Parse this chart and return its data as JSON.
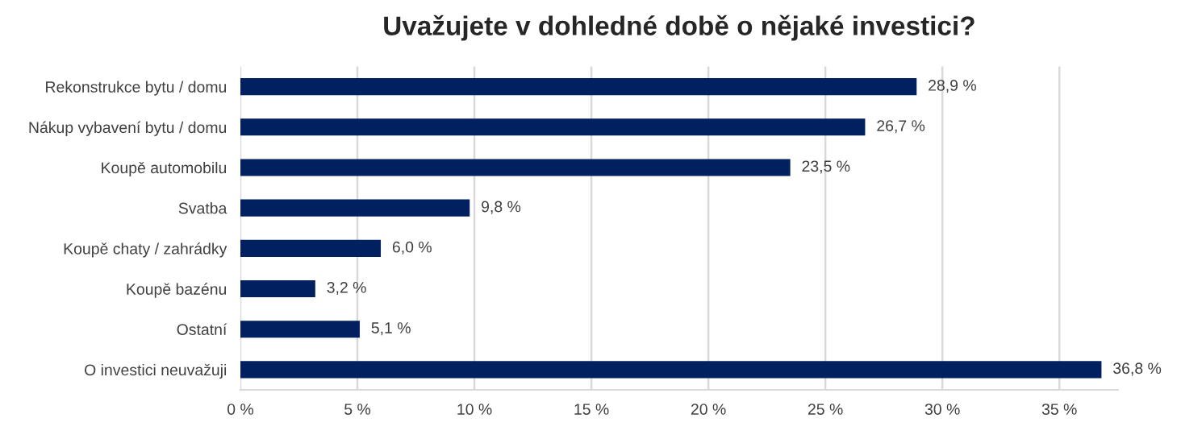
{
  "chart_data": {
    "type": "bar",
    "orientation": "horizontal",
    "title": "Uvažujete v dohledné době o nějaké investici?",
    "categories": [
      "Rekonstrukce bytu / domu",
      "Nákup vybavení bytu / domu",
      "Koupě automobilu",
      "Svatba",
      "Koupě chaty / zahrádky",
      "Koupě bazénu",
      "Ostatní",
      "O investici neuvažuji"
    ],
    "values": [
      28.9,
      26.7,
      23.5,
      9.8,
      6.0,
      3.2,
      5.1,
      36.8
    ],
    "value_labels": [
      "28,9 %",
      "26,7 %",
      "23,5 %",
      "9,8 %",
      "6,0 %",
      "3,2 %",
      "5,1 %",
      "36,8 %"
    ],
    "color": "#002060",
    "xlim": [
      0,
      37.5
    ],
    "xticks": [
      {
        "value": 0,
        "label": "0 %"
      },
      {
        "value": 5,
        "label": "5 %"
      },
      {
        "value": 10,
        "label": "10 %"
      },
      {
        "value": 15,
        "label": "15 %"
      },
      {
        "value": 20,
        "label": "20 %"
      },
      {
        "value": 25,
        "label": "25 %"
      },
      {
        "value": 30,
        "label": "30 %"
      },
      {
        "value": 35,
        "label": "35 %"
      }
    ],
    "grid": "x"
  }
}
